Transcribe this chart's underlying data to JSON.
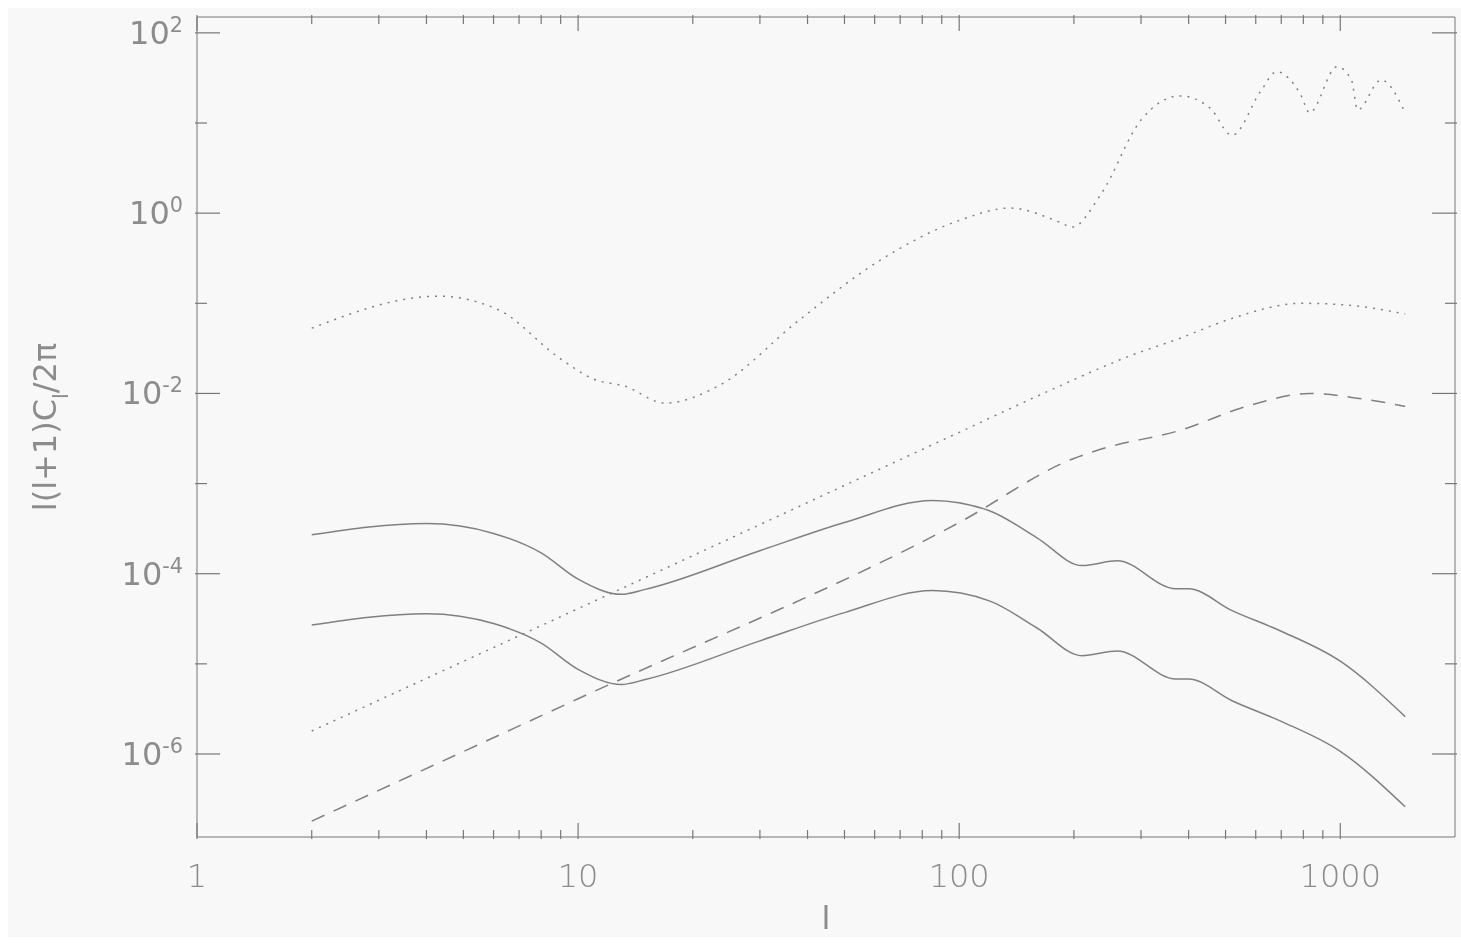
{
  "chart_data": {
    "type": "line",
    "xlabel": "l",
    "ylabel": "l(l+1)C$_{l}$/2π",
    "log": "xy",
    "xlim": [
      1,
      2000
    ],
    "ylim": [
      1.2e-07,
      150
    ],
    "xticks": [
      1,
      {
        "value": 2,
        "label": null
      },
      {
        "value": 3,
        "label": null
      },
      {
        "value": 4,
        "label": null
      },
      {
        "value": 5,
        "label": null
      },
      {
        "value": 6,
        "label": null
      },
      {
        "value": 7,
        "label": null
      },
      {
        "value": 8,
        "label": null
      },
      {
        "value": 9,
        "label": null
      },
      10,
      {
        "value": 20,
        "label": null
      },
      {
        "value": 30,
        "label": null
      },
      {
        "value": 40,
        "label": null
      },
      {
        "value": 50,
        "label": null
      },
      {
        "value": 60,
        "label": null
      },
      {
        "value": 70,
        "label": null
      },
      {
        "value": 80,
        "label": null
      },
      {
        "value": 90,
        "label": null
      },
      100,
      {
        "value": 200,
        "label": null
      },
      {
        "value": 300,
        "label": null
      },
      {
        "value": 400,
        "label": null
      },
      {
        "value": 500,
        "label": null
      },
      {
        "value": 600,
        "label": null
      },
      {
        "value": 700,
        "label": null
      },
      {
        "value": 800,
        "label": null
      },
      {
        "value": 900,
        "label": null
      },
      1000
    ],
    "yticks": [
      {
        "value": 100,
        "label": "10$^{2}$"
      },
      {
        "value": 10,
        "label": null
      },
      {
        "value": 1,
        "label": "10$^{0}$"
      },
      {
        "value": 0.1,
        "label": null
      },
      {
        "value": 0.01,
        "label": "10$^{-2}$"
      },
      {
        "value": 0.001,
        "label": null
      },
      {
        "value": 0.0001,
        "label": "10$^{-4}$"
      },
      {
        "value": 1e-05,
        "label": null
      },
      {
        "value": 1e-06,
        "label": "10$^{-6}$"
      }
    ],
    "series": [
      {
        "color": "#808080",
        "line_style": "dotted",
        "x": [
          2,
          4.3,
          6.2,
          8.9,
          11,
          13.3,
          16.9,
          23.5,
          38,
          62,
          100,
          136,
          184,
          198,
          235,
          300,
          380,
          455,
          520,
          620,
          680,
          790,
          830,
          980,
          1070,
          1110,
          1280,
          1480
        ],
        "values": [
          0.053,
          0.12,
          0.084,
          0.025,
          0.0144,
          0.012,
          0.0078,
          0.0123,
          0.065,
          0.3,
          0.83,
          1.14,
          0.79,
          0.7,
          1.6,
          10.8,
          20,
          14.7,
          7.3,
          23,
          37,
          20,
          13,
          42,
          30,
          14,
          30,
          13
        ]
      },
      {
        "color": "#808080",
        "line_style": "dotted",
        "x": [
          2,
          10,
          100,
          173,
          280,
          380,
          520,
          790,
          1060,
          1480
        ],
        "values": [
          1.8e-06,
          4.1e-05,
          0.0037,
          0.0108,
          0.026,
          0.041,
          0.068,
          0.1,
          0.095,
          0.076
        ]
      },
      {
        "color": "#808080",
        "line_style": "dashed",
        "x": [
          2,
          10,
          100,
          200,
          235,
          380,
          580,
          830,
          1120,
          1480
        ],
        "values": [
          1.8e-07,
          4.1e-06,
          0.00037,
          0.0019,
          0.0024,
          0.0039,
          0.0074,
          0.01,
          0.0088,
          0.0072
        ]
      },
      {
        "color": "#808080",
        "line_style": "solid",
        "x": [
          2,
          4,
          6,
          8,
          10,
          13,
          15,
          30,
          50,
          85,
          120,
          160,
          210,
          260,
          370,
          400,
          520,
          700,
          1000,
          1480
        ],
        "values": [
          0.00027,
          0.00036,
          0.00028,
          0.00017,
          8.7e-05,
          5.9e-05,
          6.7e-05,
          0.00018,
          0.00037,
          0.00065,
          0.0005,
          0.00025,
          0.000123,
          0.000139,
          6.8e-05,
          6.8e-05,
          3.9e-05,
          2.3e-05,
          1.07e-05,
          2.6e-06
        ]
      },
      {
        "color": "#808080",
        "line_style": "solid",
        "x": [
          2,
          4,
          6,
          8,
          10,
          13,
          15,
          30,
          50,
          85,
          120,
          160,
          210,
          260,
          370,
          400,
          520,
          700,
          1000,
          1480
        ],
        "values": [
          2.7e-05,
          3.6e-05,
          2.8e-05,
          1.7e-05,
          8.7e-06,
          5.9e-06,
          6.7e-06,
          1.8e-05,
          3.7e-05,
          6.5e-05,
          5e-05,
          2.5e-05,
          1.23e-05,
          1.39e-05,
          6.8e-06,
          6.8e-06,
          3.9e-06,
          2.3e-06,
          1.07e-06,
          2.6e-07
        ]
      }
    ]
  }
}
